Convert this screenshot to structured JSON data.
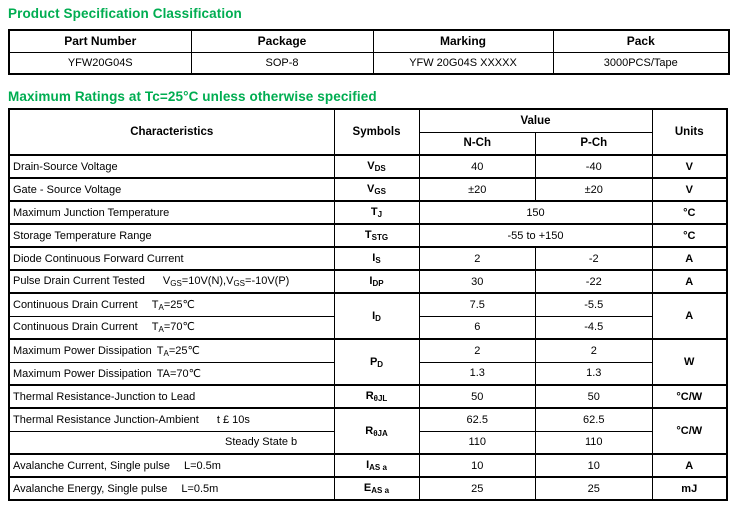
{
  "colors": {
    "accent_green": "#00ad51",
    "border": "#000000",
    "background": "#ffffff"
  },
  "section1": {
    "title": "Product Specification Classification",
    "table": {
      "headers": [
        "Part Number",
        "Package",
        "Marking",
        "Pack"
      ],
      "row": [
        "YFW20G04S",
        "SOP-8",
        "YFW 20G04S XXXXX",
        "3000PCS/Tape"
      ]
    }
  },
  "section2": {
    "title": "Maximum Ratings at Tc=25°C unless otherwise specified",
    "table": {
      "col_characteristics": "Characteristics",
      "col_symbols": "Symbols",
      "col_value": "Value",
      "col_nch": "N-Ch",
      "col_pch": "P-Ch",
      "col_units": "Units",
      "rows": [
        {
          "label": "Drain-Source Voltage",
          "symbol": [
            {
              "t": "V"
            },
            {
              "s": "DS"
            }
          ],
          "nch": "40",
          "pch": "-40",
          "units": "V"
        },
        {
          "label": "Gate - Source Voltage",
          "symbol": [
            {
              "t": "V"
            },
            {
              "s": "GS"
            }
          ],
          "nch": "±20",
          "pch": "±20",
          "units": "V"
        },
        {
          "label": "Maximum Junction Temperature",
          "symbol": [
            {
              "t": "T"
            },
            {
              "s": "J"
            }
          ],
          "value": "150",
          "units": "°C"
        },
        {
          "label": "Storage Temperature Range",
          "symbol": [
            {
              "t": "T"
            },
            {
              "s": "STG"
            }
          ],
          "value": "-55 to +150",
          "units": "°C"
        },
        {
          "label": "Diode Continuous Forward  Current",
          "symbol": [
            {
              "t": "I"
            },
            {
              "s": "S"
            }
          ],
          "nch": "2",
          "pch": "-2",
          "units": "A"
        },
        {
          "label": "Pulse Drain Current Tested",
          "condition": [
            {
              "t": "V"
            },
            {
              "s": "GS"
            },
            {
              "t": "=10V(N),V"
            },
            {
              "s": "GS"
            },
            {
              "t": "=-10V(P)"
            }
          ],
          "symbol": [
            {
              "t": "I"
            },
            {
              "s": "DP"
            }
          ],
          "nch": "30",
          "pch": "-22",
          "units": "A"
        },
        {
          "label": "Continuous Drain Current",
          "condition": [
            {
              "t": "T"
            },
            {
              "s": "A"
            },
            {
              "t": "=25℃"
            }
          ],
          "symbol": [
            {
              "t": "I"
            },
            {
              "s": "D"
            }
          ],
          "nch": "7.5",
          "pch": "-5.5",
          "units": "A"
        },
        {
          "label": "Continuous Drain Current",
          "condition": [
            {
              "t": "T"
            },
            {
              "s": "A"
            },
            {
              "t": "=70℃"
            }
          ],
          "nch": "6",
          "pch": "-4.5"
        },
        {
          "label": "Maximum Power Dissipation",
          "condition": [
            {
              "t": "T"
            },
            {
              "s": "A"
            },
            {
              "t": "=25℃"
            }
          ],
          "symbol": [
            {
              "t": "P"
            },
            {
              "s": "D"
            }
          ],
          "nch": "2",
          "pch": "2",
          "units": "W"
        },
        {
          "label": "Maximum Power Dissipation",
          "condition": [
            {
              "t": "TA=70℃"
            }
          ],
          "nch": "1.3",
          "pch": "1.3"
        },
        {
          "label": "Thermal Resistance-Junction to Lead",
          "symbol": [
            {
              "t": "R"
            },
            {
              "s": "θJL"
            }
          ],
          "nch": "50",
          "pch": "50",
          "units": "°C/W"
        },
        {
          "label": "Thermal Resistance Junction-Ambient",
          "condition": [
            {
              "t": "t £ 10s"
            }
          ],
          "symbol": [
            {
              "t": "R"
            },
            {
              "s": "θJA"
            }
          ],
          "nch": "62.5",
          "pch": "62.5",
          "units": "°C/W"
        },
        {
          "label": "",
          "condition": [
            {
              "t": "Steady State b"
            }
          ],
          "nch": "110",
          "pch": "110"
        },
        {
          "label": "Avalanche Current, Single pulse",
          "condition": [
            {
              "t": "L=0.5m"
            }
          ],
          "symbol": [
            {
              "t": "I"
            },
            {
              "s": "AS a"
            }
          ],
          "nch": "10",
          "pch": "10",
          "units": "A"
        },
        {
          "label": "Avalanche Energy, Single pulse",
          "condition": [
            {
              "t": "L=0.5m"
            }
          ],
          "symbol": [
            {
              "t": "E"
            },
            {
              "s": "AS a"
            }
          ],
          "nch": "25",
          "pch": "25",
          "units": "mJ"
        }
      ]
    }
  }
}
